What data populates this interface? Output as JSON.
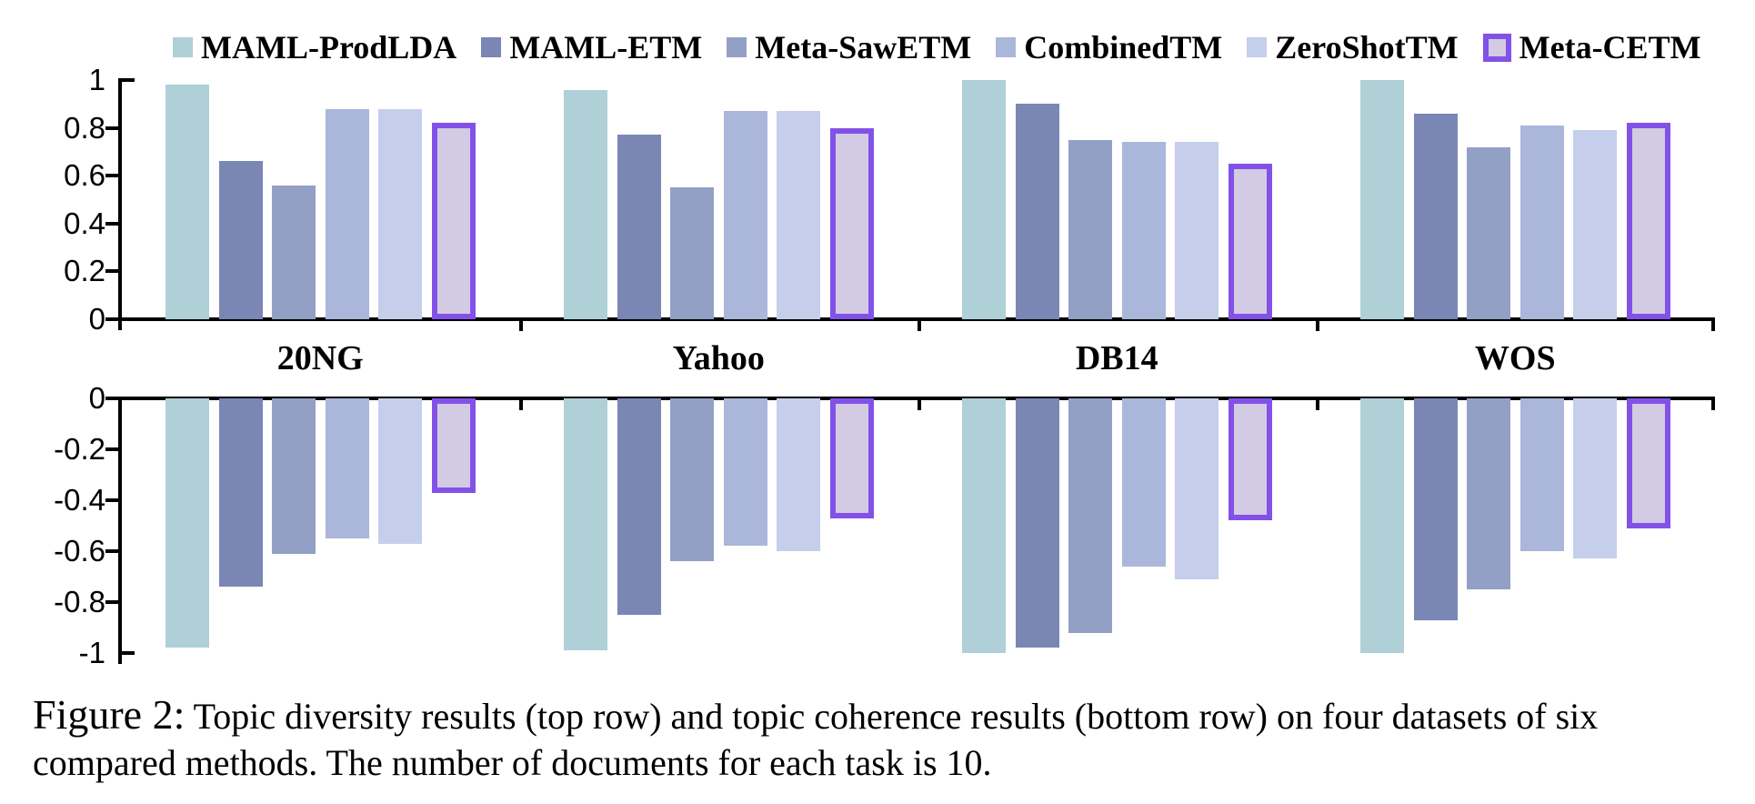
{
  "figure": {
    "caption_prefix": "Figure 2:",
    "caption_body": " Topic diversity results (top row) and topic coherence results (bottom row) on four datasets of six compared methods. The number of documents for each task is 10."
  },
  "colors": {
    "axis": "#000000",
    "highlight_border": "#8252E8"
  },
  "legend": {
    "position": "top-center",
    "items": [
      {
        "label": "MAML-ProdLDA",
        "fill": "#AFD0D6",
        "border": "#AFD0D6",
        "outlined": false
      },
      {
        "label": "MAML-ETM",
        "fill": "#7A86B4",
        "border": "#7A86B4",
        "outlined": false
      },
      {
        "label": "Meta-SawETM",
        "fill": "#93A0C6",
        "border": "#93A0C6",
        "outlined": false
      },
      {
        "label": "CombinedTM",
        "fill": "#ABB6DB",
        "border": "#ABB6DB",
        "outlined": false
      },
      {
        "label": "ZeroShotTM",
        "fill": "#C5CFEC",
        "border": "#C5CFEC",
        "outlined": false
      },
      {
        "label": "Meta-CETM",
        "fill": "#D3CBE3",
        "border": "#8252E8",
        "outlined": true
      }
    ]
  },
  "chart_data": [
    {
      "type": "bar",
      "title": "Topic diversity results (top row)",
      "categories": [
        "20NG",
        "Yahoo",
        "DB14",
        "WOS"
      ],
      "ylim": [
        0,
        1
      ],
      "yticks": [
        1,
        0.8,
        0.6,
        0.4,
        0.2,
        0
      ],
      "grid": false,
      "series": [
        {
          "name": "MAML-ProdLDA",
          "fill": "#AFD0D6",
          "values": [
            0.98,
            0.96,
            1.0,
            1.0
          ]
        },
        {
          "name": "MAML-ETM",
          "fill": "#7A86B4",
          "values": [
            0.66,
            0.77,
            0.9,
            0.86
          ]
        },
        {
          "name": "Meta-SawETM",
          "fill": "#93A0C6",
          "values": [
            0.56,
            0.55,
            0.75,
            0.72
          ]
        },
        {
          "name": "CombinedTM",
          "fill": "#ABB6DB",
          "values": [
            0.88,
            0.87,
            0.74,
            0.81
          ]
        },
        {
          "name": "ZeroShotTM",
          "fill": "#C5CFEC",
          "values": [
            0.88,
            0.87,
            0.74,
            0.79
          ]
        },
        {
          "name": "Meta-CETM",
          "fill": "#D3CBE3",
          "border": "#8252E8",
          "values": [
            0.82,
            0.8,
            0.65,
            0.82
          ]
        }
      ]
    },
    {
      "type": "bar",
      "title": "Topic coherence results (bottom row)",
      "categories": [
        "20NG",
        "Yahoo",
        "DB14",
        "WOS"
      ],
      "ylim": [
        -1,
        0
      ],
      "yticks": [
        0,
        -0.2,
        -0.4,
        -0.6,
        -0.8,
        -1
      ],
      "grid": false,
      "series": [
        {
          "name": "MAML-ProdLDA",
          "fill": "#AFD0D6",
          "values": [
            -0.98,
            -0.99,
            -1.0,
            -1.0
          ]
        },
        {
          "name": "MAML-ETM",
          "fill": "#7A86B4",
          "values": [
            -0.74,
            -0.85,
            -0.98,
            -0.87
          ]
        },
        {
          "name": "Meta-SawETM",
          "fill": "#93A0C6",
          "values": [
            -0.61,
            -0.64,
            -0.92,
            -0.75
          ]
        },
        {
          "name": "CombinedTM",
          "fill": "#ABB6DB",
          "values": [
            -0.55,
            -0.58,
            -0.66,
            -0.6
          ]
        },
        {
          "name": "ZeroShotTM",
          "fill": "#C5CFEC",
          "values": [
            -0.57,
            -0.6,
            -0.71,
            -0.63
          ]
        },
        {
          "name": "Meta-CETM",
          "fill": "#D3CBE3",
          "border": "#8252E8",
          "values": [
            -0.37,
            -0.47,
            -0.48,
            -0.51
          ]
        }
      ]
    }
  ]
}
